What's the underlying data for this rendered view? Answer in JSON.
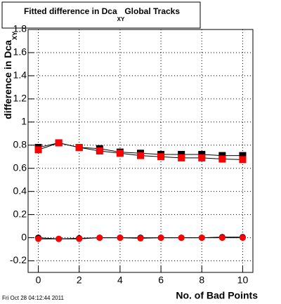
{
  "chart_data": {
    "type": "scatter",
    "title": {
      "main": "Fitted difference in Dca",
      "subscript": "XY",
      "suffix": "Global Tracks"
    },
    "y_label": {
      "main": "difference in Dca",
      "subscript": "XY"
    },
    "x_label": "No. of Bad Points",
    "timestamp": "Fri Oct 28 04:12:44 2011",
    "x": [
      0,
      1,
      2,
      3,
      4,
      5,
      6,
      7,
      8,
      9,
      10
    ],
    "series": [
      {
        "marker": "square",
        "color": "#000000",
        "values": [
          0.78,
          0.82,
          0.78,
          0.77,
          0.74,
          0.73,
          0.72,
          0.72,
          0.72,
          0.71,
          0.71
        ]
      },
      {
        "marker": "square",
        "color": "#ff0000",
        "values": [
          0.76,
          0.82,
          0.78,
          0.75,
          0.73,
          0.71,
          0.7,
          0.69,
          0.69,
          0.68,
          0.675
        ]
      },
      {
        "marker": "circle",
        "color": "#000000",
        "values": [
          0,
          -0.01,
          -0.005,
          0,
          0,
          0,
          0,
          0,
          0,
          0.005,
          0.005
        ]
      },
      {
        "marker": "circle",
        "color": "#ff0000",
        "values": [
          -0.01,
          -0.01,
          -0.01,
          0,
          0,
          -0.005,
          0,
          0,
          0,
          0,
          0
        ]
      }
    ],
    "xlim": [
      -0.5,
      10.5
    ],
    "xticks": [
      0,
      2,
      4,
      6,
      8,
      10
    ],
    "ylim": [
      -0.3,
      1.8
    ],
    "yticks": [
      -0.2,
      0,
      0.2,
      0.4,
      0.6,
      0.8,
      1,
      1.2,
      1.4,
      1.6,
      1.8
    ],
    "grid": true
  }
}
